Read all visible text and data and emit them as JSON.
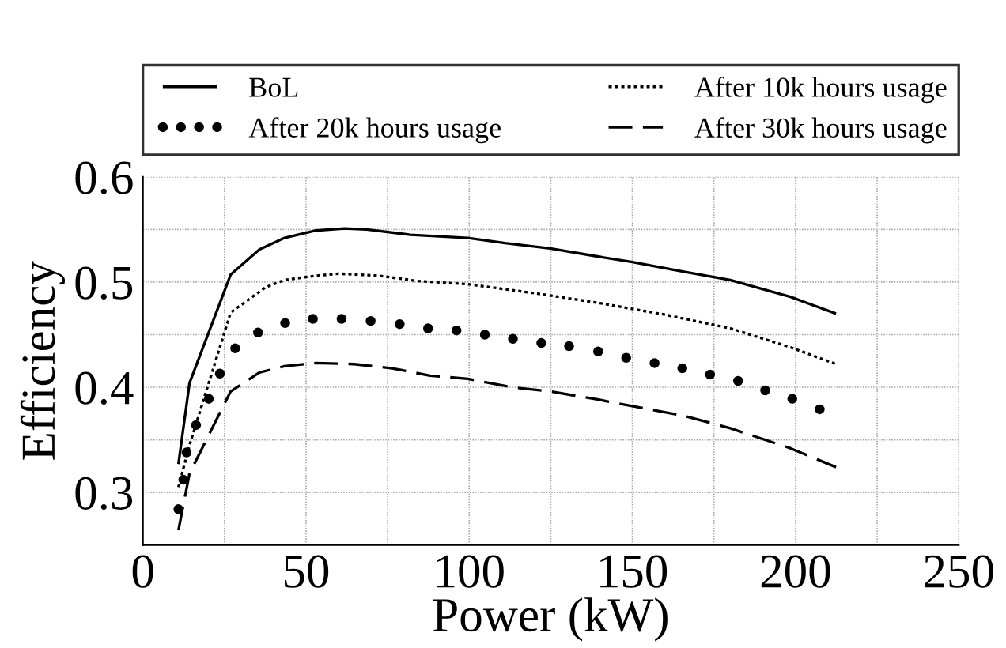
{
  "chart_data": {
    "type": "line",
    "xlabel": "Power (kW)",
    "ylabel": "Efficiency",
    "xlim": [
      0,
      250
    ],
    "xticks": [
      0,
      {
        "value": 25,
        "label": null
      },
      50,
      {
        "value": 75,
        "label": null
      },
      100,
      {
        "value": 125,
        "label": null
      },
      150,
      {
        "value": 175,
        "label": null
      },
      200,
      {
        "value": 225,
        "label": null
      },
      250
    ],
    "ylim": [
      0.25,
      0.6
    ],
    "yticks": [
      {
        "value": 0.25,
        "label": null
      },
      0.3,
      {
        "value": 0.35,
        "label": null
      },
      0.4,
      {
        "value": 0.45,
        "label": null
      },
      0.5,
      {
        "value": 0.55,
        "label": null
      },
      0.6
    ],
    "grid": true,
    "legend": "top",
    "series": [
      {
        "name": "BoL",
        "color": "#000000",
        "line_style": "solid",
        "x": [
          10.9,
          14.3,
          26.9,
          35.7,
          43.4,
          53,
          61.8,
          68.6,
          82,
          99.6,
          111,
          124.8,
          140,
          150,
          165.5,
          180,
          198.4,
          212.4
        ],
        "values": [
          0.327,
          0.404,
          0.507,
          0.531,
          0.542,
          0.549,
          0.551,
          0.55,
          0.545,
          0.542,
          0.537,
          0.532,
          0.524,
          0.519,
          0.51,
          0.502,
          0.486,
          0.47
        ]
      },
      {
        "name": "After 10k hours usage",
        "color": "#000000",
        "line_style": "dotted",
        "x": [
          10.9,
          14.3,
          26.9,
          37.6,
          43.4,
          53,
          59.9,
          72.5,
          84.1,
          99.6,
          121,
          140,
          160,
          180,
          198.4,
          212.4
        ],
        "values": [
          0.305,
          0.345,
          0.471,
          0.495,
          0.502,
          0.506,
          0.508,
          0.506,
          0.501,
          0.498,
          0.489,
          0.48,
          0.469,
          0.456,
          0.438,
          0.422
        ]
      },
      {
        "name": "After 20k hours usage",
        "type": "scatter",
        "marker": "circle",
        "color": "#000000",
        "x": [
          10.9,
          12.4,
          13.4,
          16.3,
          20.2,
          23.6,
          28.3,
          35.3,
          43.6,
          52.1,
          60.9,
          69.8,
          78.7,
          87.4,
          96.1,
          104.8,
          113.4,
          122.1,
          130.6,
          139.5,
          148.1,
          156.8,
          165.3,
          173.8,
          182.4,
          190.7,
          199,
          207.4
        ],
        "values": [
          0.284,
          0.312,
          0.338,
          0.364,
          0.389,
          0.413,
          0.437,
          0.452,
          0.461,
          0.465,
          0.465,
          0.463,
          0.46,
          0.456,
          0.454,
          0.45,
          0.446,
          0.442,
          0.439,
          0.434,
          0.428,
          0.423,
          0.418,
          0.412,
          0.406,
          0.397,
          0.389,
          0.379
        ]
      },
      {
        "name": "After 30k hours usage",
        "color": "#000000",
        "line_style": "dashed",
        "x": [
          10.9,
          14.3,
          26.9,
          35.7,
          43.4,
          53,
          64.7,
          76.4,
          88,
          99.6,
          113.2,
          124.8,
          140,
          150,
          165.5,
          180,
          198.4,
          212.4
        ],
        "values": [
          0.264,
          0.318,
          0.396,
          0.414,
          0.42,
          0.423,
          0.422,
          0.418,
          0.411,
          0.408,
          0.4,
          0.396,
          0.388,
          0.382,
          0.373,
          0.361,
          0.342,
          0.324
        ]
      }
    ]
  }
}
